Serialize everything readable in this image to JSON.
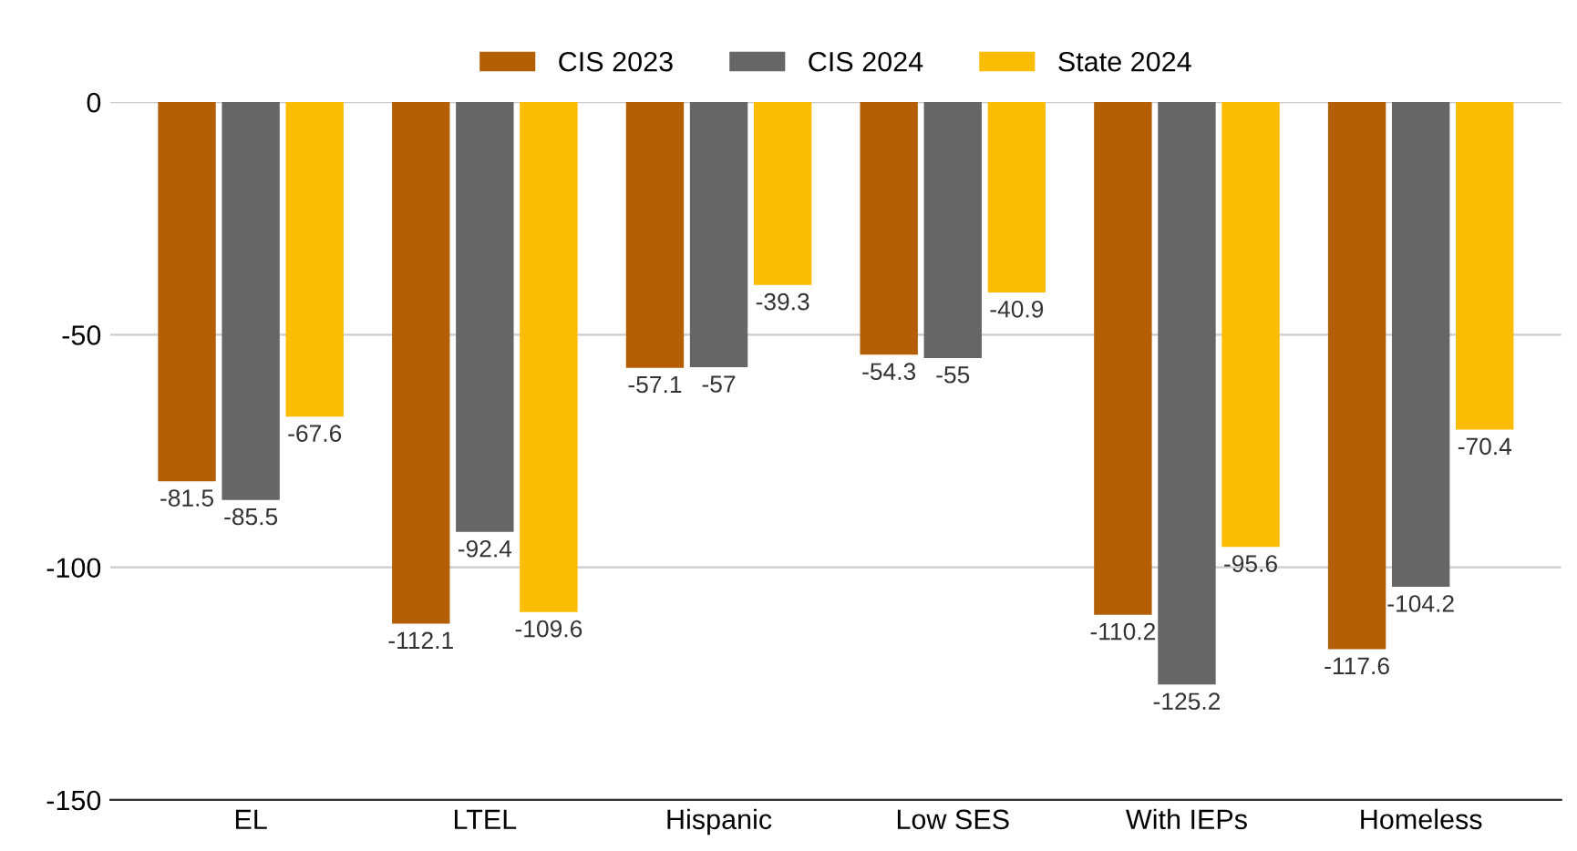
{
  "chart_data": {
    "type": "bar",
    "categories": [
      "EL",
      "LTEL",
      "Hispanic",
      "Low SES",
      "With IEPs",
      "Homeless"
    ],
    "series": [
      {
        "name": "CIS 2023",
        "color": "#b45f06",
        "values": [
          -81.5,
          -112.1,
          -57.1,
          -54.3,
          -110.2,
          -117.6
        ]
      },
      {
        "name": "CIS 2024",
        "color": "#666666",
        "values": [
          -85.5,
          -92.4,
          -57,
          -55,
          -125.2,
          -104.2
        ]
      },
      {
        "name": "State 2024",
        "color": "#fbbc04",
        "values": [
          -67.6,
          -109.6,
          -39.3,
          -40.9,
          -95.6,
          -70.4
        ]
      }
    ],
    "ylim": [
      -150,
      0
    ],
    "yticks": [
      -150,
      -100,
      -50,
      0
    ],
    "grid": "y",
    "legend": "top",
    "data_labels": true
  }
}
